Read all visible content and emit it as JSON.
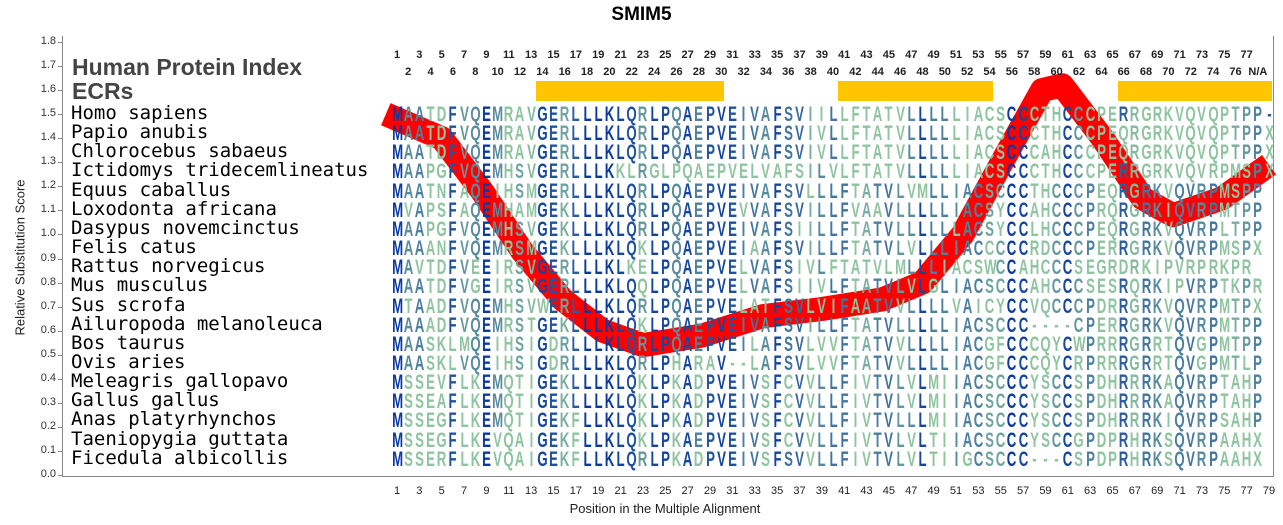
{
  "title": "SMIM5",
  "header": {
    "line1": "Human Protein Index",
    "line2": "ECRs"
  },
  "top_index_odd": [
    "1",
    "3",
    "5",
    "7",
    "9",
    "11",
    "13",
    "15",
    "17",
    "19",
    "21",
    "23",
    "25",
    "27",
    "29",
    "31",
    "33",
    "35",
    "37",
    "39",
    "41",
    "43",
    "45",
    "47",
    "49",
    "51",
    "53",
    "55",
    "57",
    "59",
    "61",
    "63",
    "65",
    "67",
    "69",
    "71",
    "73",
    "75",
    "77"
  ],
  "top_index_even": [
    "2",
    "4",
    "6",
    "8",
    "10",
    "12",
    "14",
    "16",
    "18",
    "20",
    "22",
    "24",
    "26",
    "28",
    "30",
    "32",
    "34",
    "36",
    "38",
    "40",
    "42",
    "44",
    "46",
    "48",
    "50",
    "52",
    "54",
    "56",
    "58",
    "60",
    "62",
    "64",
    "66",
    "68",
    "70",
    "72",
    "74",
    "76",
    "N/A"
  ],
  "ecr_regions": [
    [
      14,
      30
    ],
    [
      41,
      54
    ],
    [
      66,
      79
    ]
  ],
  "colors": {
    "ecr": "#ffc600",
    "curve": "#ff0000",
    "conserved": "#0a3a9e",
    "variable": "#8fc4a0"
  },
  "alignment": [
    {
      "species": "Homo sapiens",
      "seq": "MAATDFVQEMRAVGERLLLKLQRLPQAEPVEIVAFSVIILLFTATVLLLLLIACSCCCTHCCCPERRGRKVQVQPTPP-"
    },
    {
      "species": "Papio anubis",
      "seq": "MAATDFVQEMRAVGERLLLKLQRLPQAEPVEIVAFSVIVLLFTATVLLLLLIACSCCCTHCCCPEQRGRKVQVQPTPPX"
    },
    {
      "species": "Chlorocebus sabaeus",
      "seq": "MAATDFVQEMRAVGERLLLKLQRLPQAEPVEIVAFSVIVLLFTATVLLLLLIACSCCCAHCCCPEQRGRKVQVQPTPPX"
    },
    {
      "species": "Ictidomys tridecemlineatus",
      "seq": "MAAPGFVQEMHSVGERLLLKKLRGLPQAEPVELVAFSILVLFTATVLLLLLIACSCCCTHCCCPERRGRKVQVRPMSPX"
    },
    {
      "species": "Equus caballus",
      "seq": "MAATNFAQEIHSMGERLLLKLQRLPQAEPVEIVAFSVLLLFTATVLVMLLIACSCCCTHCCCPEQRGRKVQVRPMSPP"
    },
    {
      "species": "Loxodonta africana",
      "seq": "MVAPSFAQEMHAMGEKLLLKLQRLPQAEPVEVVAFSVILLFVAAVLLLLLIACSYCCAHCCCPRQRGRKIQVRPMTPP"
    },
    {
      "species": "Dasypus novemcinctus",
      "seq": "MAAPGFVQEMHSVGEKLLLKLQRLPQAEPVEIVAFSIILLFTATVLLLLLLACSYCCLHCCCPEQRGRKVQVRPLTPP"
    },
    {
      "species": "Felis catus",
      "seq": "MAAANFVQEMRSMGEKLLLKLQKLPQAEPVEIAAFSVILLFTATVLVLLLIACCCCCRDCCCPERRGRKVQVRPMSPX"
    },
    {
      "species": "Rattus norvegicus",
      "seq": "MAVTDFVEEIRSVGERLLLKLKELPQAEPVELVAFSIVLFTATVLMLLLIACSWCCAHCCCSEGRDRKIPVRPRKPR"
    },
    {
      "species": "Mus musculus",
      "seq": "MAATDFVGEIRSVGERLLLKLQQLPQAEPVELVAFSIIVLFTATVLVLGLIACSCCCAHCCCSESRQRKIPVRPTKPR"
    },
    {
      "species": "Sus scrofa",
      "seq": "MTAADFVQEMHSVWERLLLKLQRLPQAEPVELATFSVLVIFAATVVLLLLVAICYCCVQCCCPDRRGRKVQVRPMTPX"
    },
    {
      "species": "Ailuropoda melanoleuca",
      "seq": "MAAADFVQEMRSTGEKLLLKLQKLPQAEPVEIVAFSVILLFTATVLLLLLIACSCCC----CPERRGRKVQVRPMTPP"
    },
    {
      "species": "Bos taurus",
      "seq": "MAASKLMQEIHSIGDRLLLKLQRLPQAEPVEILAFSVLVVFTATVVLLLLIACGFCCCQYCWPRRRGRRTQVGPMTPP"
    },
    {
      "species": "Ovis aries",
      "seq": "MAASKLVQEIHSIGDRLLLKLQRLPHARAV--LAFSVLVVFTATVVLLLLIACGFCCCQYCRPRRRGRRTQVGPMTLP"
    },
    {
      "species": "Meleagris gallopavo",
      "seq": "MSSEVFLKEMQTIGEKLLLKLQKLPKADPVEIVSFCVVLLFIVTVLVLMIIACSCCCYSCCSPDHRRRKAQVRPTAHP"
    },
    {
      "species": "Gallus gallus",
      "seq": "MSSEAFLKEMQTIGEKLLLKLQKLPKADPVEIVSFCVVLLFIVTVLVLMIIACSCCCYSCCSPDHRRRKAQVRPTAHP"
    },
    {
      "species": "Anas platyrhynchos",
      "seq": "MSSEGFLKEMQTIGEKFLLKLQKLPKADPVEIVSFCVVLLFIVTVLLLMIIACSCCCYSCCSPDHRRRKIQVRPSAHP"
    },
    {
      "species": "Taeniopygia guttata",
      "seq": "MSSEGFLKEVQAIGEKFLLKLQKLPKAEPVEIVSFCVVLLFIVTVLVLTIIACSCCCYSCCGPDPRHRKSQVRPAAHX"
    },
    {
      "species": "Ficedula albicollis",
      "seq": "MSSERFLKEVQAIGEKFLLKLQRLPKADPVEIVSFSVVLLFIVTVLVLTIIGCSCCC---CSPDPRHRKSQVRPAAHX"
    }
  ],
  "chart_data": {
    "type": "line",
    "title": "SMIM5",
    "xlabel": "Position in the Multiple Alignment",
    "ylabel": "Relative Substitution Score",
    "xlim": [
      0,
      79
    ],
    "ylim": [
      0.0,
      1.8
    ],
    "yticks": [
      "0.0",
      "0.1",
      "0.2",
      "0.3",
      "0.4",
      "0.5",
      "0.6",
      "0.7",
      "0.8",
      "0.9",
      "1.0",
      "1.1",
      "1.2",
      "1.3",
      "1.4",
      "1.5",
      "1.6",
      "1.7",
      "1.8"
    ],
    "xticks": [
      "1",
      "3",
      "5",
      "7",
      "9",
      "11",
      "13",
      "15",
      "17",
      "19",
      "21",
      "23",
      "25",
      "27",
      "29",
      "31",
      "33",
      "35",
      "37",
      "39",
      "41",
      "43",
      "45",
      "47",
      "49",
      "51",
      "53",
      "55",
      "57",
      "59",
      "61",
      "63",
      "65",
      "67",
      "69",
      "71",
      "73",
      "75",
      "77",
      "79"
    ],
    "series": [
      {
        "name": "substitution score",
        "x": [
          0,
          5,
          8.6,
          12.2,
          15.8,
          19.4,
          23,
          28.3,
          33.7,
          39,
          44.4,
          48,
          51.6,
          55.1,
          58.7,
          60.5,
          64.1,
          67.7,
          70.4,
          74.8,
          79
        ],
        "y": [
          1.5,
          1.4,
          1.18,
          0.93,
          0.73,
          0.6,
          0.54,
          0.58,
          0.66,
          0.69,
          0.73,
          0.8,
          1.0,
          1.3,
          1.6,
          1.62,
          1.4,
          1.15,
          1.08,
          1.15,
          1.29
        ]
      }
    ]
  }
}
